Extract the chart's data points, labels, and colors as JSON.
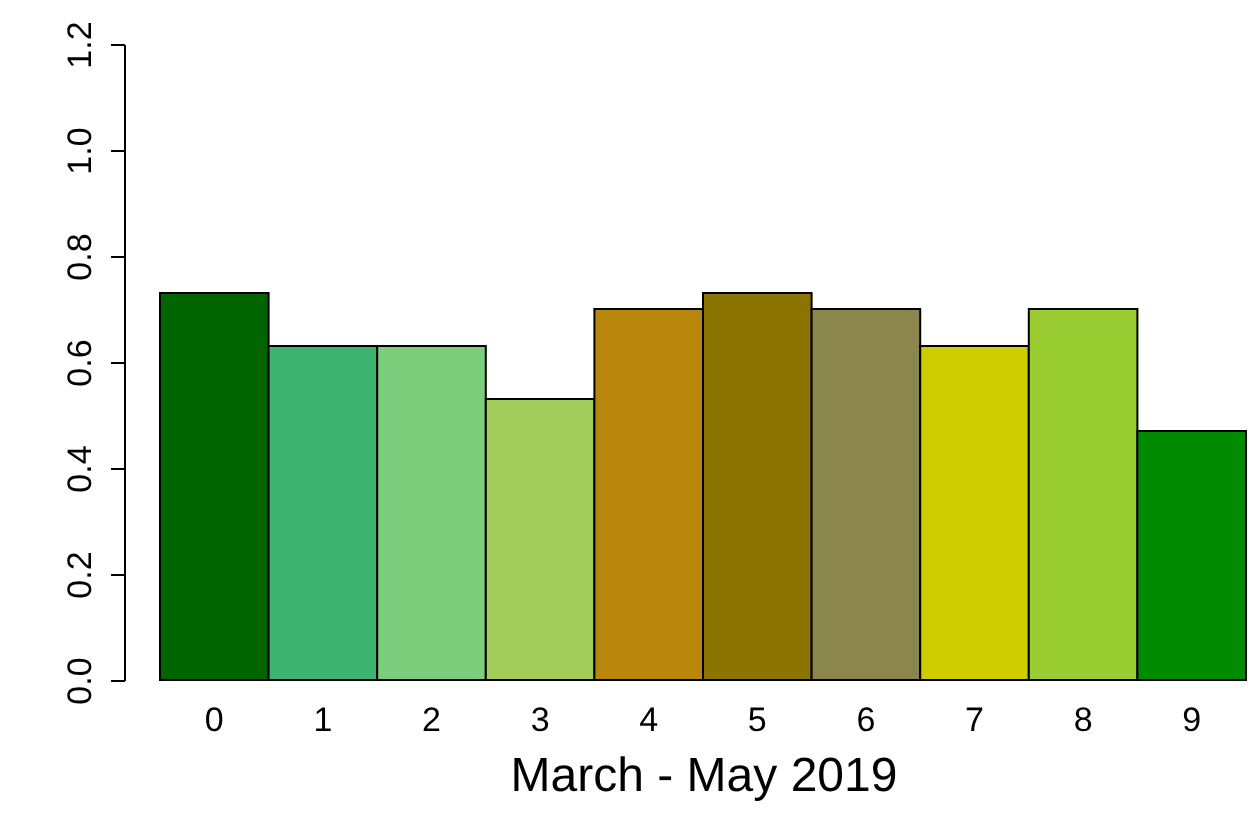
{
  "chart_data": {
    "type": "bar",
    "xlabel": "March - May 2019",
    "categories": [
      "0",
      "1",
      "2",
      "3",
      "4",
      "5",
      "6",
      "7",
      "8",
      "9"
    ],
    "values": [
      0.73,
      0.63,
      0.63,
      0.53,
      0.7,
      0.73,
      0.7,
      0.63,
      0.7,
      0.47
    ],
    "colors": [
      "#006400",
      "#3cb371",
      "#7ccd7c",
      "#a2cd5a",
      "#b8860b",
      "#8b7500",
      "#8b864e",
      "#cdcd00",
      "#9acd32",
      "#008b00"
    ],
    "ylim": [
      0,
      1.2
    ],
    "yticks": [
      {
        "value": 0,
        "label": "0.0"
      },
      {
        "value": 0.2,
        "label": "0.2"
      },
      {
        "value": 0.4,
        "label": "0.4"
      },
      {
        "value": 0.6,
        "label": "0.6"
      },
      {
        "value": 0.8,
        "label": "0.8"
      },
      {
        "value": 1,
        "label": "1.0"
      },
      {
        "value": 1.2,
        "label": "1.2"
      }
    ]
  }
}
